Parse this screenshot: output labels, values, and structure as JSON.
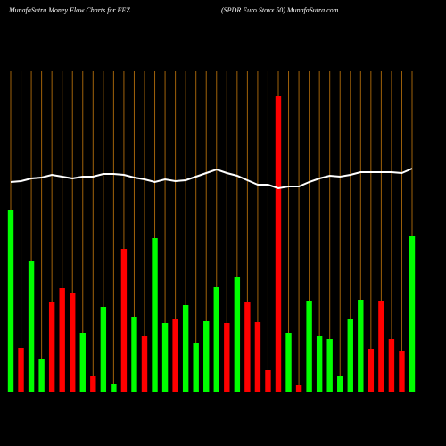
{
  "chart_data": {
    "type": "bar-line",
    "title": "MunafaSutra  Money Flow  Charts for FEZ",
    "subtitle": "(SPDR Euro  Stoxx 50) MunafaSutra.com",
    "ylim": [
      0,
      360
    ],
    "bar_colors": {
      "up": "#00ff00",
      "down": "#ff0000"
    },
    "grid_color": "#a0620a",
    "line_color": "#ffffff",
    "series": [
      {
        "name": "money flow",
        "directions": [
          "up",
          "down",
          "up",
          "up",
          "down",
          "down",
          "down",
          "up",
          "down",
          "up",
          "up",
          "down",
          "up",
          "down",
          "up",
          "up",
          "down",
          "up",
          "up",
          "up",
          "up",
          "down",
          "up",
          "down",
          "down",
          "down",
          "down",
          "up",
          "down",
          "up",
          "up",
          "up",
          "up",
          "up",
          "up",
          "down",
          "down",
          "down",
          "down",
          "up"
        ],
        "values": [
          205,
          50,
          147,
          37,
          101,
          117,
          111,
          67,
          19,
          96,
          9,
          161,
          85,
          63,
          173,
          78,
          82,
          98,
          55,
          80,
          118,
          78,
          130,
          101,
          79,
          25,
          332,
          67,
          8,
          103,
          63,
          60,
          19,
          82,
          104,
          49,
          102,
          60,
          46,
          175
        ]
      },
      {
        "name": "trend",
        "values": [
          236,
          237,
          240,
          241,
          244,
          242,
          240,
          242,
          242,
          245,
          245,
          244,
          241,
          239,
          236,
          239,
          237,
          238,
          242,
          246,
          250,
          246,
          243,
          238,
          233,
          233,
          229,
          231,
          231,
          236,
          240,
          243,
          242,
          244,
          247,
          247,
          247,
          247,
          246,
          251
        ]
      }
    ]
  }
}
